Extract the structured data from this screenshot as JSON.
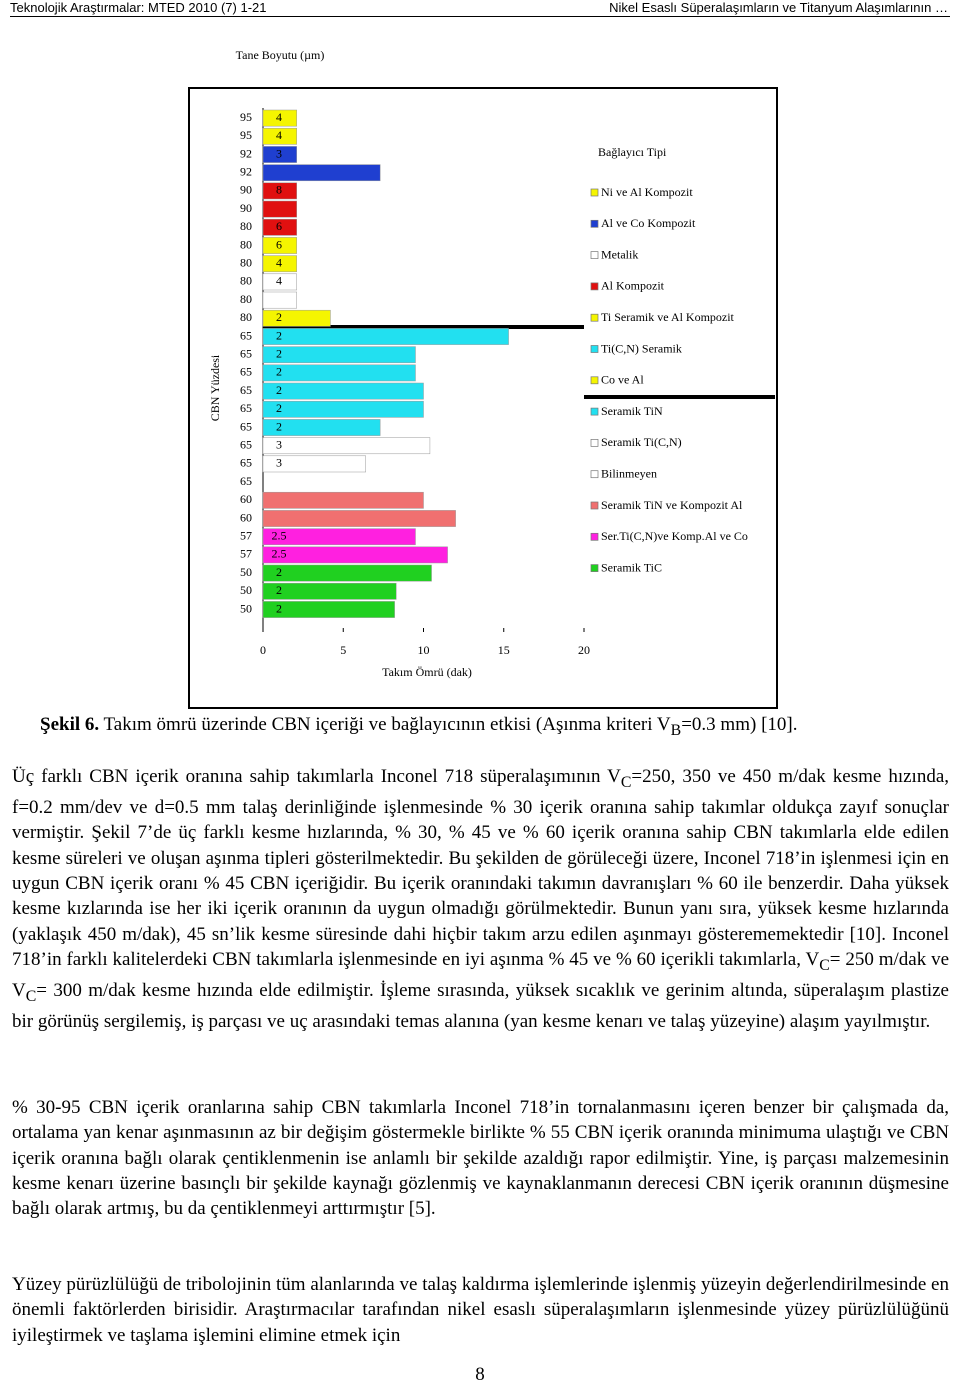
{
  "header": {
    "left": "Teknolojik Araştırmalar: MTED 2010 (7) 1-21",
    "right": "Nikel Esaslı Süperalaşımların ve Titanyum Alaşımlarının …"
  },
  "chart_data": {
    "type": "bar",
    "orientation": "horizontal",
    "top_label": "Tane Boyutu (µm)",
    "y_label": "CBN Yüzdesi",
    "x_label": "Takım Ömrü (dak)",
    "categories": [
      95,
      95,
      92,
      92,
      90,
      90,
      80,
      80,
      80,
      80,
      80,
      80,
      65,
      65,
      65,
      65,
      65,
      65,
      65,
      65,
      65,
      60,
      60,
      57,
      57,
      50,
      50,
      50
    ],
    "values": [
      2.1,
      2.1,
      2.1,
      7.3,
      2.1,
      2.1,
      2.1,
      2.1,
      2.1,
      2.1,
      2.1,
      4.2,
      15.3,
      9.5,
      9.5,
      10.0,
      10.0,
      7.3,
      10.4,
      6.4,
      0,
      10.0,
      12.0,
      9.5,
      11.5,
      10.5,
      8.3,
      8.2
    ],
    "grain_size": [
      4,
      4,
      3,
      null,
      8,
      null,
      6,
      6,
      4,
      4,
      null,
      2,
      2,
      2,
      2,
      2,
      2,
      2,
      3,
      3,
      null,
      null,
      null,
      2.5,
      2.5,
      2,
      2,
      2
    ],
    "colors": [
      "#f5f500",
      "#f5f500",
      "#1f3fd0",
      "#1f3fd0",
      "#e01010",
      "#e01010",
      "#e01010",
      "#f5f500",
      "#f5f500",
      "#ffffff",
      "#ffffff",
      "#f5f500",
      "#22e0f0",
      "#22e0f0",
      "#22e0f0",
      "#22e0f0",
      "#22e0f0",
      "#22e0f0",
      "#ffffff",
      "#ffffff",
      "#ffffff",
      "#f07070",
      "#f07070",
      "#ff20e0",
      "#ff20e0",
      "#20d020",
      "#20d020",
      "#20d020"
    ],
    "xlim": [
      0,
      20
    ],
    "xticks": [
      0,
      5,
      10,
      15,
      20
    ],
    "legend_title": "Bağlayıcı Tipi",
    "legend": [
      {
        "name": "Ni ve Al Kompozit",
        "color": "#f5f500"
      },
      {
        "name": "Al ve Co Kompozit",
        "color": "#1f3fd0"
      },
      {
        "name": "Metalik",
        "color": "#ffffff"
      },
      {
        "name": "Al Kompozit",
        "color": "#e01010"
      },
      {
        "name": "Ti Seramik ve Al Kompozit",
        "color": "#f5f500"
      },
      {
        "name": "Ti(C,N) Seramik",
        "color": "#22e0f0"
      },
      {
        "name": "Co ve Al",
        "color": "#f5f500"
      },
      {
        "name": "Seramik TiN",
        "color": "#22e0f0"
      },
      {
        "name": "Seramik Ti(C,N)",
        "color": "#ffffff"
      },
      {
        "name": "Bilinmeyen",
        "color": "#ffffff"
      },
      {
        "name": "Seramik TiN ve Kompozit Al",
        "color": "#f07070"
      },
      {
        "name": "Ser.Ti(C,N)ve Komp.Al ve Co",
        "color": "#ff20e0"
      },
      {
        "name": "Seramik TiC",
        "color": "#20d020"
      }
    ]
  },
  "caption": {
    "label": "Şekil 6.",
    "text": " Takım ömrü üzerinde CBN içeriği ve bağlayıcının etkisi (Aşınma kriteri V",
    "sub": "B",
    "text_end": "=0.3 mm) [10]."
  },
  "paragraphs": [
    [
      {
        "text": "Üç farklı CBN içerik oranına sahip takımlarla Inconel 718 süperalaşımının V"
      },
      {
        "sub": "C"
      },
      {
        "text": "=250, 350 ve 450 m/dak kesme hızında, f=0.2 mm/dev ve d=0.5 mm talaş derinliğinde işlenmesinde % 30 içerik oranına sahip takımlar oldukça zayıf sonuçlar vermiştir. Şekil 7’de üç farklı kesme hızlarında, % 30, % 45 ve % 60 içerik oranına sahip CBN takımlarla elde edilen kesme süreleri ve oluşan aşınma tipleri gösterilmektedir. Bu şekilden de görüleceği üzere, Inconel 718’in işlenmesi için en uygun CBN içerik oranı % 45 CBN içeriğidir. Bu içerik oranındaki takımın davranışları % 60 ile benzerdir. Daha yüksek kesme kızlarında ise her iki içerik oranının da uygun olmadığı görülmektedir. Bunun yanı sıra, yüksek kesme hızlarında (yaklaşık 450 m/dak), 45 sn’lik kesme süresinde dahi hiçbir takım arzu edilen aşınmayı gösterememektedir [10]. Inconel 718’in farklı kalitelerdeki CBN takımlarla işlenmesinde en iyi aşınma % 45 ve % 60 içerikli takımlarla, V"
      },
      {
        "sub": "C"
      },
      {
        "text": "= 250 m/dak ve V"
      },
      {
        "sub": "C"
      },
      {
        "text": "= 300 m/dak kesme hızında elde edilmiştir. İşleme sırasında, yüksek sıcaklık ve gerinim altında, süperalaşım plastize bir görünüş sergilemiş, iş parçası ve uç arasındaki temas alanına (yan kesme kenarı ve talaş yüzeyine) alaşım yayılmıştır."
      }
    ],
    [
      {
        "text": "% 30-95 CBN içerik oranlarına sahip CBN takımlarla Inconel 718’in tornalanmasını içeren benzer bir çalışmada da, ortalama yan kenar aşınmasının az bir değişim göstermekle birlikte % 55 CBN içerik oranında minimuma ulaştığı ve CBN içerik oranına bağlı olarak çentiklenmenin ise anlamlı bir şekilde azaldığı rapor edilmiştir. Yine, iş parçası malzemesinin kesme kenarı üzerine basınçlı bir şekilde kaynağı gözlenmiş ve kaynaklanmanın derecesi CBN içerik oranının düşmesine bağlı olarak artmış, bu da çentiklenmeyi arttırmıştır [5]."
      }
    ],
    [
      {
        "text": "Yüzey pürüzlülüğü de tribolojinin tüm alanlarında ve talaş kaldırma işlemlerinde işlenmiş yüzeyin değerlendirilmesinde en önemli faktörlerden birisidir. Araştırmacılar tarafından nikel esaslı süperalaşımların işlenmesinde yüzey pürüzlülüğünü iyileştirmek ve taşlama işlemini elimine etmek için"
      }
    ]
  ],
  "page_number": "8"
}
